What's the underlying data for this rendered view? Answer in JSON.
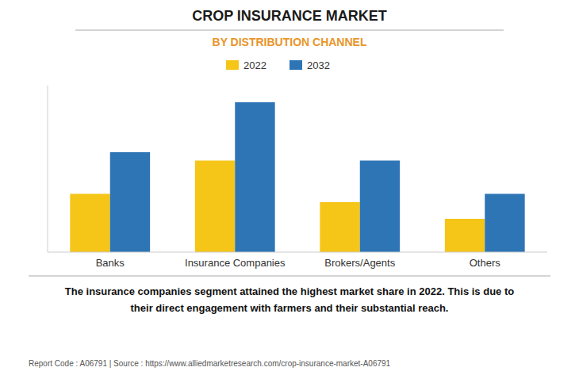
{
  "chart_data": {
    "type": "bar",
    "title": "CROP INSURANCE MARKET",
    "subtitle": "BY DISTRIBUTION CHANNEL",
    "categories": [
      "Banks",
      "Insurance Companies",
      "Brokers/Agents",
      "Others"
    ],
    "series": [
      {
        "name": "2022",
        "color": "#F5C518",
        "values": [
          3.5,
          5.5,
          3.0,
          2.0
        ]
      },
      {
        "name": "2032",
        "color": "#2E75B6",
        "values": [
          6.0,
          9.0,
          5.5,
          3.5
        ]
      }
    ],
    "ylim": [
      0,
      10
    ],
    "yticks": [],
    "grid": false,
    "tick_labels": "x",
    "legend": "top",
    "annotations": [
      "The insurance companies segment attained the highest market share in 2022. This is due to\ntheir direct engagement with farmers and their substantial reach.",
      "Report Code : A06791  |  Source : https://www.alliedmarketresearch.com/crop-insurance-market-A06791"
    ]
  }
}
